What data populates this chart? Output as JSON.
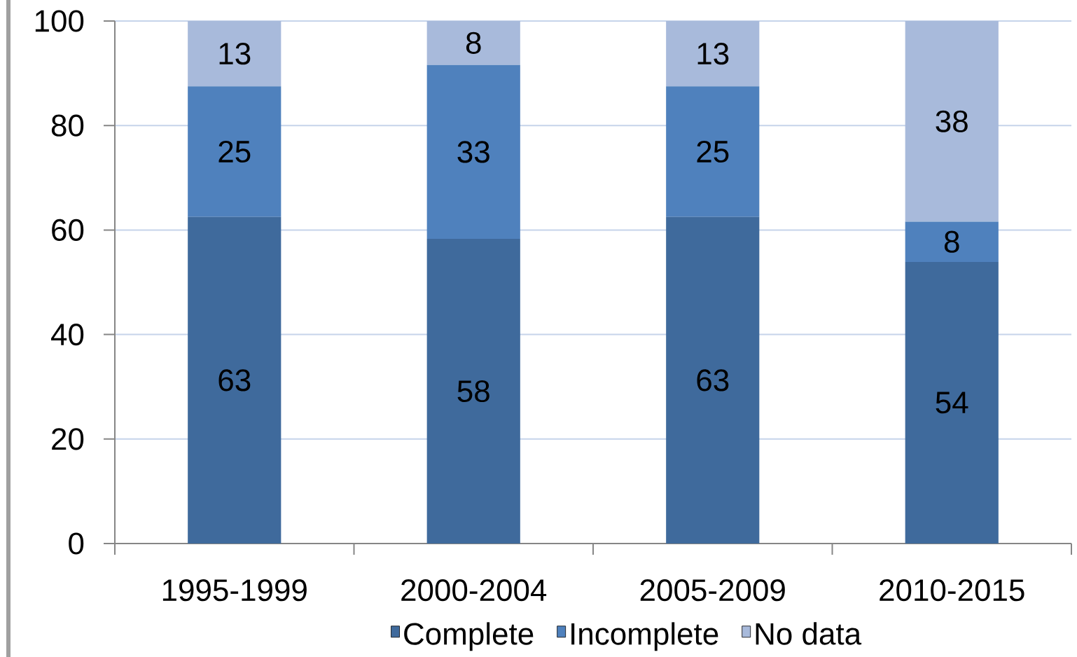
{
  "chart_data": {
    "type": "bar",
    "stacked": true,
    "categories": [
      "1995-1999",
      "2000-2004",
      "2005-2009",
      "2010-2015"
    ],
    "series": [
      {
        "name": "Complete",
        "color": "#3f6a9c",
        "values": [
          62.5,
          58.3,
          62.5,
          53.9
        ],
        "value_labels": [
          "63",
          "58",
          "63",
          "54"
        ]
      },
      {
        "name": "Incomplete",
        "color": "#4f81bd",
        "values": [
          25,
          33.3,
          25,
          7.7
        ],
        "value_labels": [
          "25",
          "33",
          "25",
          "8"
        ]
      },
      {
        "name": "No data",
        "color": "#a8badb",
        "values": [
          12.5,
          8.4,
          12.5,
          38.4
        ],
        "value_labels": [
          "13",
          "8",
          "13",
          "38"
        ]
      }
    ],
    "ylim": [
      0,
      100
    ],
    "yticks": [
      0,
      20,
      40,
      60,
      80,
      100
    ],
    "grid": "y",
    "legend": "bottom"
  }
}
